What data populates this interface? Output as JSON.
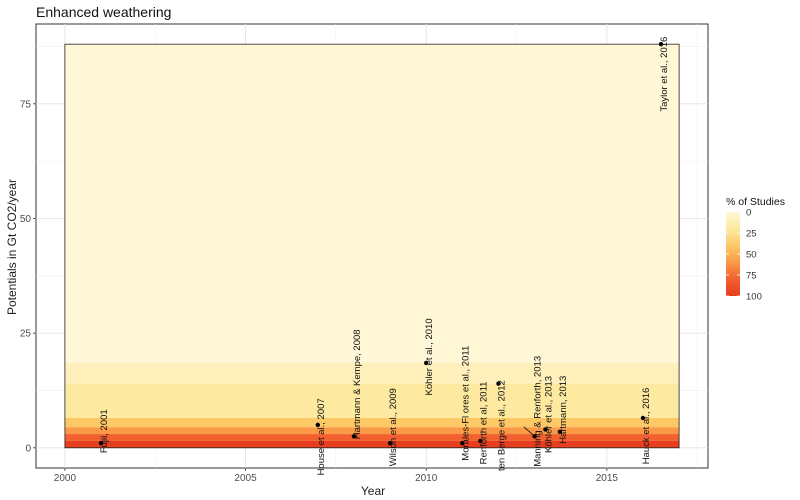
{
  "chart_data": {
    "type": "scatter",
    "title": "Enhanced weathering",
    "xlabel": "Year",
    "ylabel": "Potentials in Gt CO2/year",
    "xlim": [
      1999.2,
      2017.8
    ],
    "ylim": [
      -4.4,
      92.4
    ],
    "x_ticks": [
      2000,
      2005,
      2010,
      2015
    ],
    "y_ticks": [
      0,
      25,
      50,
      75
    ],
    "grid": true,
    "legend": {
      "title": "% of Studies",
      "position": "right",
      "ticks": [
        0,
        25,
        50,
        75,
        100
      ],
      "colors": [
        "#fff7d6",
        "#fee9a0",
        "#fdc866",
        "#fb9a46",
        "#f26030",
        "#e63e1e"
      ]
    },
    "background_bands": {
      "x_range": [
        2000.0,
        2017.0
      ],
      "bands": [
        {
          "y_from": 0,
          "y_to": 1.5,
          "pct": 100,
          "color": "#e63e1e"
        },
        {
          "y_from": 1.5,
          "y_to": 3.0,
          "pct": 85,
          "color": "#f26030"
        },
        {
          "y_from": 3.0,
          "y_to": 4.5,
          "pct": 70,
          "color": "#fb9a46"
        },
        {
          "y_from": 4.5,
          "y_to": 6.5,
          "pct": 55,
          "color": "#fdc866"
        },
        {
          "y_from": 6.5,
          "y_to": 14.0,
          "pct": 35,
          "color": "#fee9a0"
        },
        {
          "y_from": 14.0,
          "y_to": 18.5,
          "pct": 15,
          "color": "#fff0bb"
        },
        {
          "y_from": 18.5,
          "y_to": 88.0,
          "pct": 5,
          "color": "#fff7d6"
        }
      ]
    },
    "points": [
      {
        "label": "Fujii, 2001",
        "x": 2001.0,
        "y": 1.0
      },
      {
        "label": "House et al., 2007",
        "x": 2007.0,
        "y": 5.0
      },
      {
        "label": "Hartmann & Kempe, 2008",
        "x": 2008.0,
        "y": 2.5
      },
      {
        "label": "Wilson et al., 2009",
        "x": 2009.0,
        "y": 1.0
      },
      {
        "label": "Köhler et al., 2010",
        "x": 2010.0,
        "y": 18.5
      },
      {
        "label": "Morales-Fl ores et al., 2011",
        "x": 2011.0,
        "y": 1.0
      },
      {
        "label": "Renforth et al, 2011",
        "x": 2011.5,
        "y": 1.5
      },
      {
        "label": "ten Berge et al., 2012",
        "x": 2012.0,
        "y": 14.0
      },
      {
        "label": "Manning & Renforth, 2013",
        "x": 2013.0,
        "y": 2.5
      },
      {
        "label": "Köhler et al., 2013",
        "x": 2013.3,
        "y": 4.0
      },
      {
        "label": "Hartmann, 2013",
        "x": 2013.7,
        "y": 3.5
      },
      {
        "label": "Hauck et al., 2016",
        "x": 2016.0,
        "y": 6.5
      },
      {
        "label": "Taylor et al., 2016",
        "x": 2016.5,
        "y": 88.0
      }
    ]
  }
}
